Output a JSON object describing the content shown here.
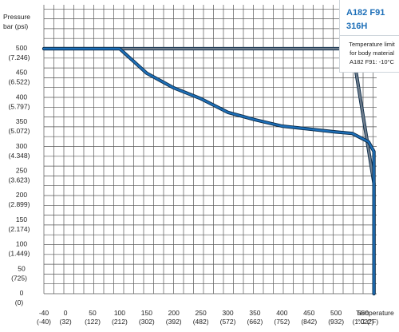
{
  "legend": {
    "title": "A182 F91\n316H",
    "note": "Temperature limit for body material A182 F91: -10°C"
  },
  "chart_data": {
    "type": "line",
    "ylabel": "Pressure bar (psi)",
    "xlabel": "Temperature °C (°F)",
    "xlim": [
      -40,
      575
    ],
    "ylim": [
      0,
      500
    ],
    "grid": true,
    "x_ticks": [
      {
        "v": -40,
        "c": "-40",
        "f": "(-40)"
      },
      {
        "v": 0,
        "c": "0",
        "f": "(32)"
      },
      {
        "v": 50,
        "c": "50",
        "f": "(122)"
      },
      {
        "v": 100,
        "c": "100",
        "f": "(212)"
      },
      {
        "v": 150,
        "c": "150",
        "f": "(302)"
      },
      {
        "v": 200,
        "c": "200",
        "f": "(392)"
      },
      {
        "v": 250,
        "c": "250",
        "f": "(482)"
      },
      {
        "v": 300,
        "c": "300",
        "f": "(572)"
      },
      {
        "v": 350,
        "c": "350",
        "f": "(662)"
      },
      {
        "v": 400,
        "c": "400",
        "f": "(752)"
      },
      {
        "v": 450,
        "c": "450",
        "f": "(842)"
      },
      {
        "v": 500,
        "c": "500",
        "f": "(932)"
      },
      {
        "v": 550,
        "c": "550",
        "f": "(1.022)"
      }
    ],
    "y_ticks": [
      {
        "v": 500,
        "b": "500",
        "p": "(7.246)"
      },
      {
        "v": 450,
        "b": "450",
        "p": "(6.522)"
      },
      {
        "v": 400,
        "b": "400",
        "p": "(5.797)"
      },
      {
        "v": 350,
        "b": "350",
        "p": "(5.072)"
      },
      {
        "v": 300,
        "b": "300",
        "p": "(4.348)"
      },
      {
        "v": 250,
        "b": "250",
        "p": "(3.623)"
      },
      {
        "v": 200,
        "b": "200",
        "p": "(2.899)"
      },
      {
        "v": 150,
        "b": "150",
        "p": "(2.174)"
      },
      {
        "v": 100,
        "b": "100",
        "p": "(1.449)"
      },
      {
        "v": 50,
        "b": "50",
        "p": "(725)"
      },
      {
        "v": 0,
        "b": "0",
        "p": "(0)"
      }
    ],
    "series": [
      {
        "color": "#6f7d8c",
        "x": [
          -40,
          0,
          530,
          570,
          570
        ],
        "y": [
          500,
          500,
          500,
          225,
          0
        ]
      },
      {
        "color": "#1d6fb8",
        "x": [
          -40,
          100,
          150,
          200,
          250,
          300,
          350,
          400,
          450,
          500,
          530,
          560,
          570,
          570
        ],
        "y": [
          500,
          500,
          450,
          420,
          398,
          370,
          355,
          342,
          336,
          330,
          327,
          310,
          290,
          0
        ]
      }
    ]
  }
}
